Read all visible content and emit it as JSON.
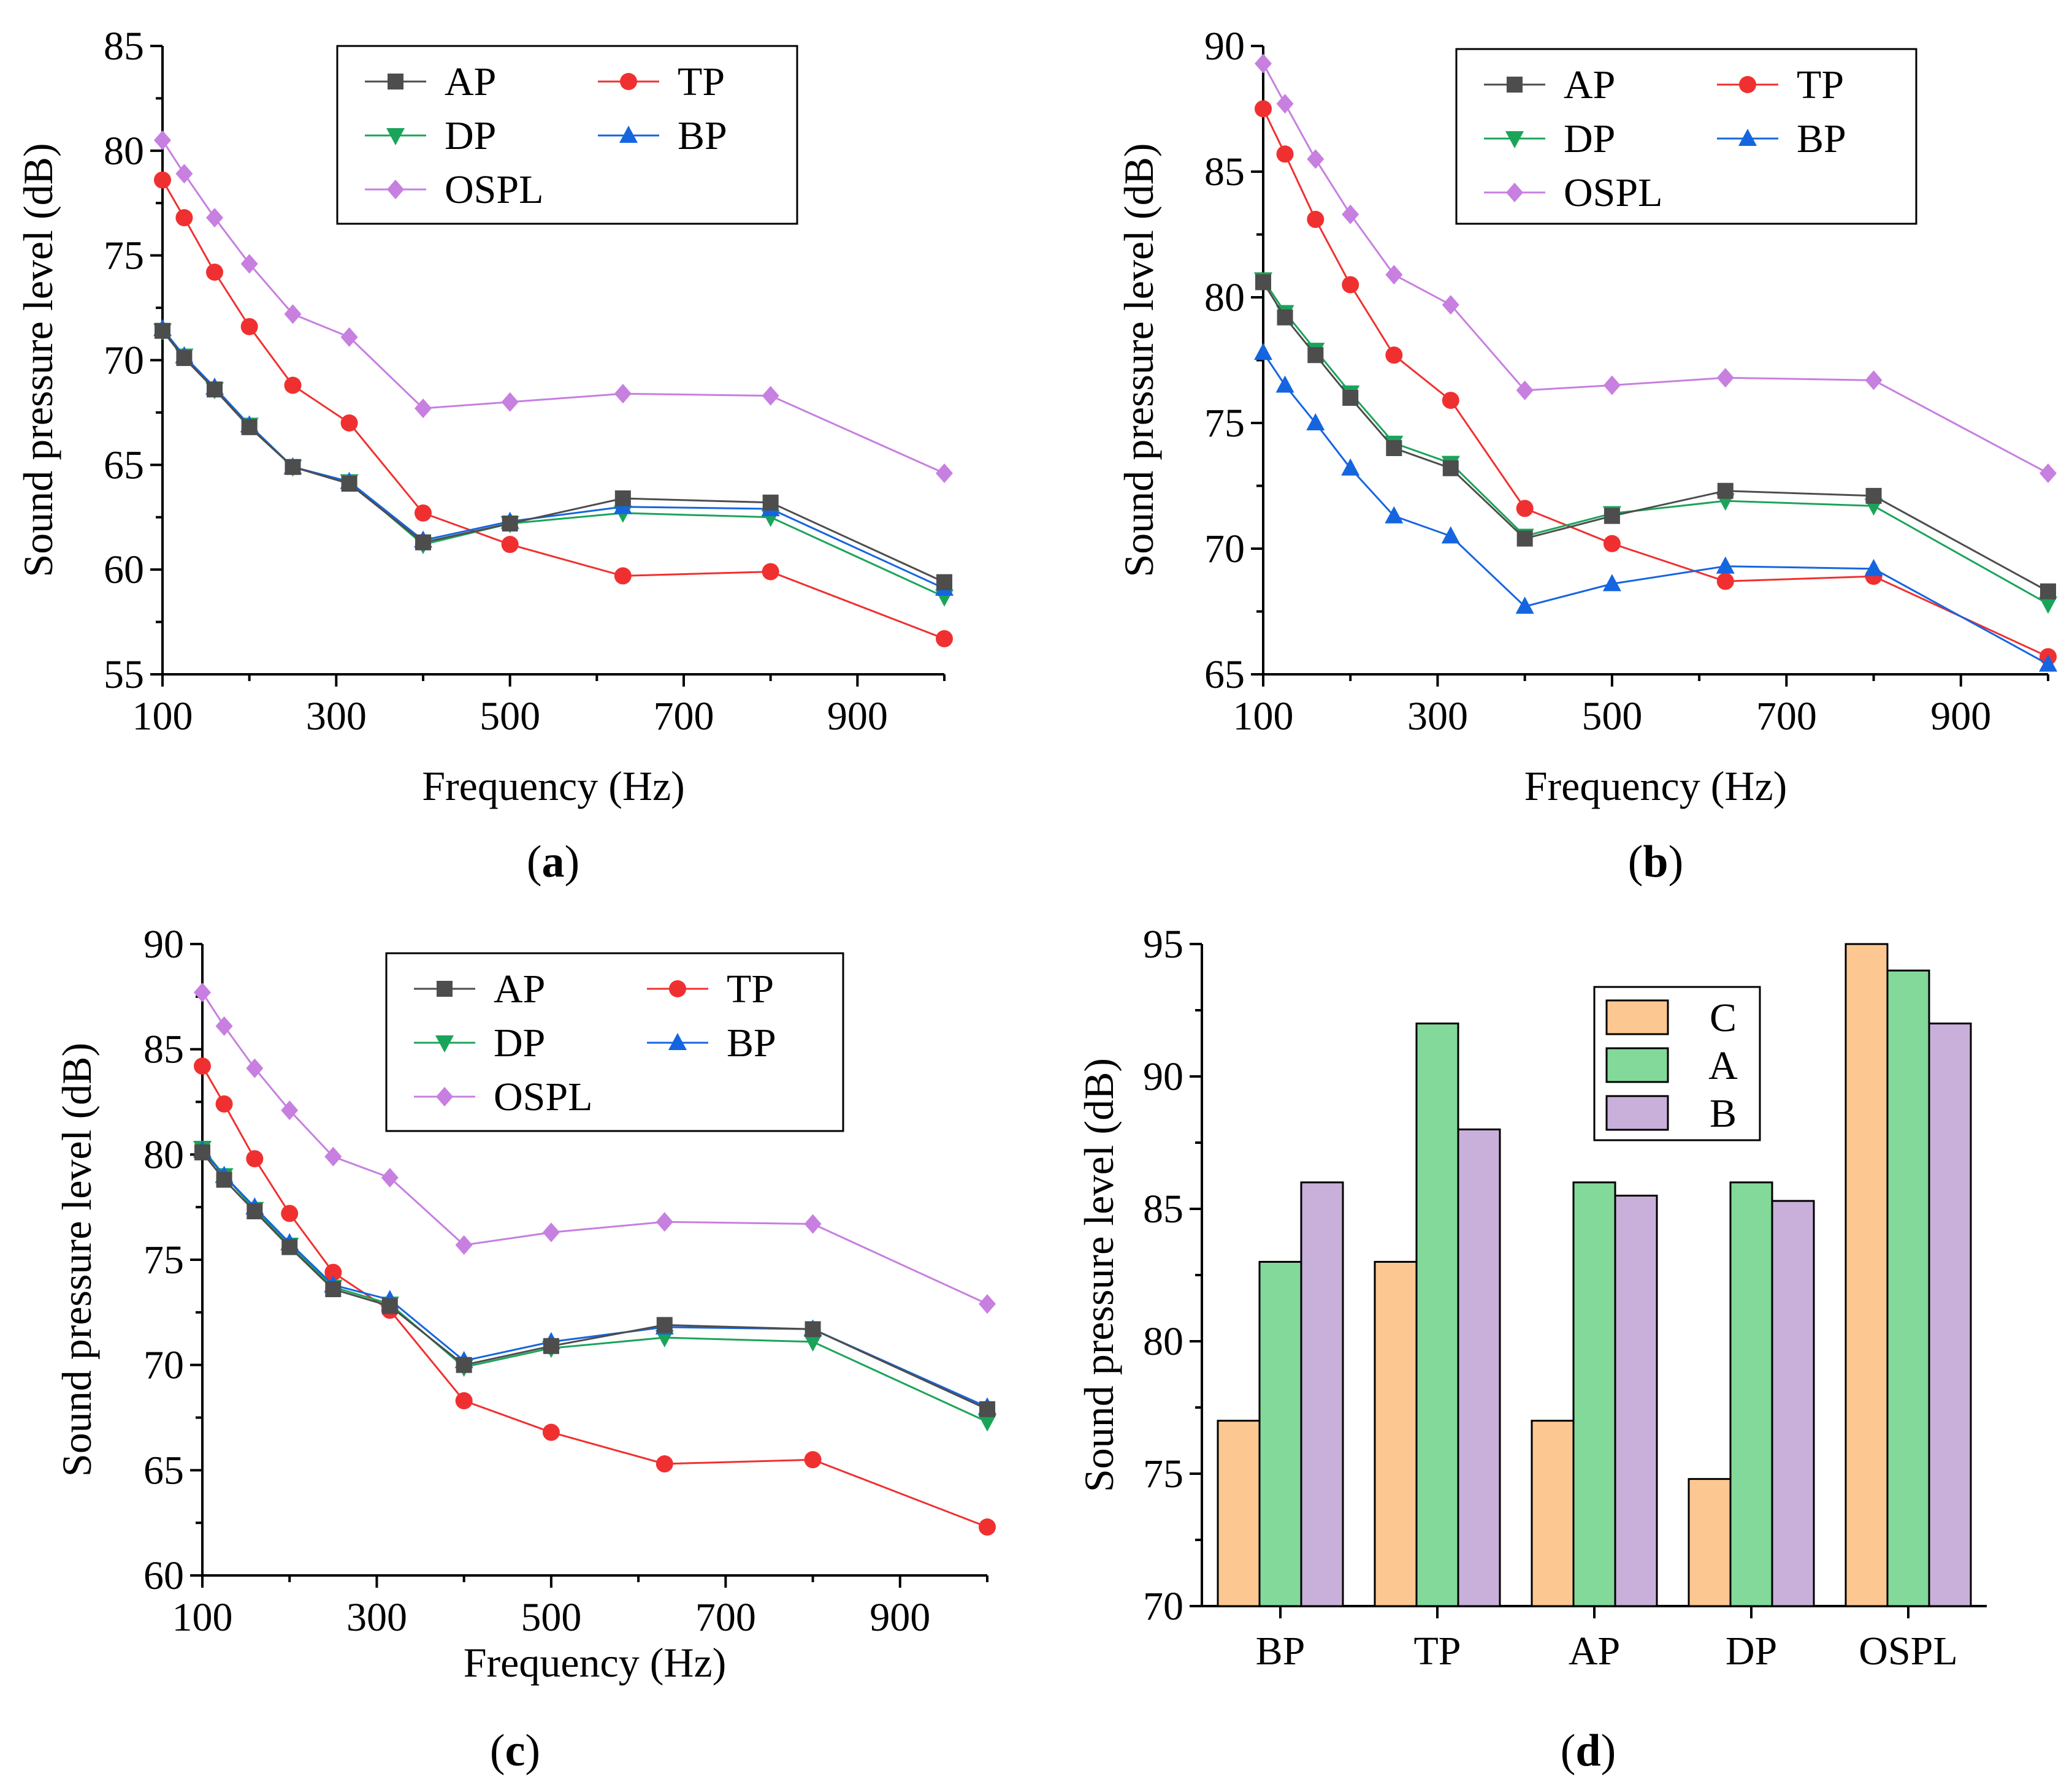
{
  "series_styles": {
    "AP": {
      "color": "#4d4d4d",
      "marker": "square"
    },
    "DP": {
      "color": "#1aa45a",
      "marker": "triangle-down"
    },
    "TP": {
      "color": "#f03030",
      "marker": "circle"
    },
    "BP": {
      "color": "#1565e0",
      "marker": "triangle-up"
    },
    "OSPL": {
      "color": "#c77fe0",
      "marker": "diamond"
    }
  },
  "bar_colors": {
    "C": "#fcc791",
    "A": "#82d99a",
    "B": "#c8b0da"
  },
  "chart_data": [
    {
      "id": "a",
      "panel_label": "a",
      "type": "line",
      "xlabel": "Frequency  (Hz)",
      "ylabel": "Sound pressure level (dB)",
      "xlim": [
        100,
        1000
      ],
      "ylim": [
        55,
        85
      ],
      "xticks": [
        100,
        300,
        500,
        700,
        900
      ],
      "yticks": [
        55,
        60,
        65,
        70,
        75,
        80,
        85
      ],
      "legend_order": [
        "AP",
        "TP",
        "DP",
        "BP",
        "OSPL"
      ],
      "x": [
        100,
        125,
        160,
        200,
        250,
        315,
        400,
        500,
        630,
        800,
        1000
      ],
      "series": [
        {
          "name": "AP",
          "values": [
            71.4,
            70.1,
            68.6,
            66.8,
            64.9,
            64.1,
            61.3,
            62.2,
            63.4,
            63.2,
            59.4
          ]
        },
        {
          "name": "DP",
          "values": [
            71.4,
            70.2,
            68.6,
            66.9,
            64.9,
            64.2,
            61.2,
            62.2,
            62.7,
            62.5,
            58.7
          ]
        },
        {
          "name": "TP",
          "values": [
            78.6,
            76.8,
            74.2,
            71.6,
            68.8,
            67.0,
            62.7,
            61.2,
            59.7,
            59.9,
            56.7
          ]
        },
        {
          "name": "BP",
          "values": [
            71.5,
            70.2,
            68.7,
            66.9,
            64.9,
            64.2,
            61.4,
            62.3,
            63.0,
            62.9,
            59.1
          ]
        },
        {
          "name": "OSPL",
          "values": [
            80.5,
            78.9,
            76.8,
            74.6,
            72.2,
            71.1,
            67.7,
            68.0,
            68.4,
            68.3,
            64.6
          ]
        }
      ]
    },
    {
      "id": "b",
      "panel_label": "b",
      "type": "line",
      "xlabel": "Frequency  (Hz)",
      "ylabel": "Sound pressure level (dB)",
      "xlim": [
        100,
        1000
      ],
      "ylim": [
        65,
        90
      ],
      "xticks": [
        100,
        300,
        500,
        700,
        900
      ],
      "yticks": [
        65,
        70,
        75,
        80,
        85,
        90
      ],
      "legend_order": [
        "AP",
        "TP",
        "DP",
        "BP",
        "OSPL"
      ],
      "x": [
        100,
        125,
        160,
        200,
        250,
        315,
        400,
        500,
        630,
        800,
        1000
      ],
      "series": [
        {
          "name": "AP",
          "values": [
            80.6,
            79.2,
            77.7,
            76.0,
            74.0,
            73.2,
            70.4,
            71.3,
            72.3,
            72.1,
            68.3
          ]
        },
        {
          "name": "DP",
          "values": [
            80.7,
            79.4,
            77.9,
            76.2,
            74.2,
            73.4,
            70.5,
            71.4,
            71.9,
            71.7,
            67.8
          ]
        },
        {
          "name": "TP",
          "values": [
            87.5,
            85.7,
            83.1,
            80.5,
            77.7,
            75.9,
            71.6,
            70.2,
            68.7,
            68.9,
            65.7
          ]
        },
        {
          "name": "BP",
          "values": [
            77.8,
            76.5,
            75.0,
            73.2,
            71.3,
            70.5,
            67.7,
            68.6,
            69.3,
            69.2,
            65.4
          ]
        },
        {
          "name": "OSPL",
          "values": [
            89.3,
            87.7,
            85.5,
            83.3,
            80.9,
            79.7,
            76.3,
            76.5,
            76.8,
            76.7,
            73.0
          ]
        }
      ]
    },
    {
      "id": "c",
      "panel_label": "c",
      "type": "line",
      "xlabel": "Frequency  (Hz)",
      "ylabel": "Sound pressure level (dB)",
      "xlim": [
        100,
        1000
      ],
      "ylim": [
        60,
        90
      ],
      "xticks": [
        100,
        300,
        500,
        700,
        900
      ],
      "yticks": [
        60,
        65,
        70,
        75,
        80,
        85,
        90
      ],
      "legend_order": [
        "AP",
        "TP",
        "DP",
        "BP",
        "OSPL"
      ],
      "x": [
        100,
        125,
        160,
        200,
        250,
        315,
        400,
        500,
        630,
        800,
        1000
      ],
      "series": [
        {
          "name": "AP",
          "values": [
            80.1,
            78.8,
            77.3,
            75.6,
            73.6,
            72.8,
            70.0,
            70.9,
            71.9,
            71.7,
            67.9
          ]
        },
        {
          "name": "DP",
          "values": [
            80.3,
            79.0,
            77.4,
            75.7,
            73.7,
            72.9,
            69.9,
            70.8,
            71.3,
            71.1,
            67.3
          ]
        },
        {
          "name": "TP",
          "values": [
            84.2,
            82.4,
            79.8,
            77.2,
            74.4,
            72.6,
            68.3,
            66.8,
            65.3,
            65.5,
            62.3
          ]
        },
        {
          "name": "BP",
          "values": [
            80.2,
            79.0,
            77.5,
            75.8,
            73.8,
            73.1,
            70.2,
            71.1,
            71.8,
            71.7,
            68.0
          ]
        },
        {
          "name": "OSPL",
          "values": [
            87.7,
            86.1,
            84.1,
            82.1,
            79.9,
            78.9,
            75.7,
            76.3,
            76.8,
            76.7,
            72.9
          ]
        }
      ]
    },
    {
      "id": "d",
      "panel_label": "d",
      "type": "bar",
      "xlabel": "",
      "ylabel": "Sound pressure level (dB)",
      "ylim": [
        70,
        95
      ],
      "yticks": [
        70,
        75,
        80,
        85,
        90,
        95
      ],
      "categories": [
        "BP",
        "TP",
        "AP",
        "DP",
        "OSPL"
      ],
      "series": [
        {
          "name": "C",
          "values": [
            77.0,
            83.0,
            77.0,
            74.8,
            95.0
          ]
        },
        {
          "name": "A",
          "values": [
            83.0,
            92.0,
            86.0,
            86.0,
            94.0
          ]
        },
        {
          "name": "B",
          "values": [
            86.0,
            88.0,
            85.5,
            85.3,
            92.0
          ]
        }
      ]
    }
  ]
}
